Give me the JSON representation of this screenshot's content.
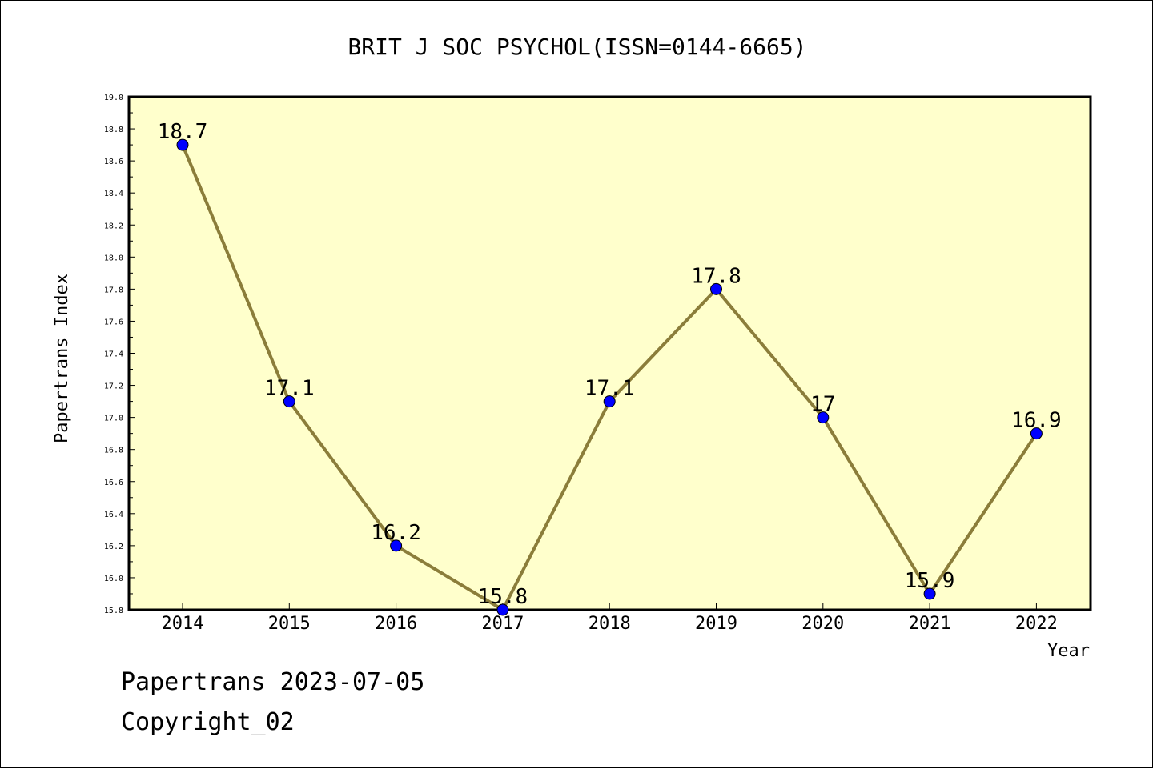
{
  "chart_data": {
    "type": "line",
    "title": "BRIT J SOC PSYCHOL(ISSN=0144-6665)",
    "xlabel": "Year",
    "ylabel": "Papertrans Index",
    "categories": [
      "2014",
      "2015",
      "2016",
      "2017",
      "2018",
      "2019",
      "2020",
      "2021",
      "2022"
    ],
    "values": [
      18.7,
      17.1,
      16.2,
      15.8,
      17.1,
      17.8,
      17.0,
      15.9,
      16.9
    ],
    "data_labels": [
      "18.7",
      "17.1",
      "16.2",
      "15.8",
      "17.1",
      "17.8",
      "17",
      "15.9",
      "16.9"
    ],
    "ylim": [
      15.8,
      19.0
    ],
    "yticks": [
      "15.8",
      "16.0",
      "16.2",
      "16.4",
      "16.6",
      "16.8",
      "17.0",
      "17.2",
      "17.4",
      "17.6",
      "17.8",
      "18.0",
      "18.2",
      "18.4",
      "18.6",
      "18.8",
      "19.0"
    ],
    "grid": false,
    "colors": {
      "plot_background": "#ffffcc",
      "line": "#8b7d3a",
      "marker": "#0000ff"
    }
  },
  "footer": {
    "line1": "Papertrans 2023-07-05",
    "line2": "Copyright_02"
  }
}
